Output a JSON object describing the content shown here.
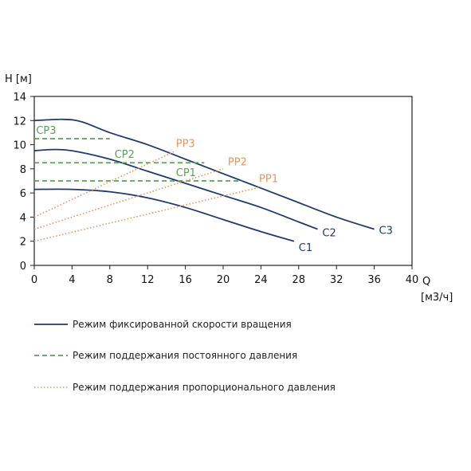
{
  "chart_data": {
    "type": "line",
    "ylabel": "H [м]",
    "xlabel": "Q",
    "xunit": "[м3/ч]",
    "xlim": [
      0,
      40
    ],
    "ylim": [
      0,
      14
    ],
    "xticks": [
      0,
      4,
      8,
      12,
      16,
      20,
      24,
      28,
      32,
      36,
      40
    ],
    "yticks": [
      0,
      2,
      4,
      6,
      8,
      10,
      12,
      14
    ],
    "grid": false,
    "colors": {
      "fixed": "#1f3a6e",
      "constant": "#5aa05a",
      "proportional": "#e8955a"
    },
    "series": [
      {
        "name": "C1",
        "group": "fixed",
        "x": [
          0,
          4,
          8,
          12,
          16,
          20,
          24,
          27.5
        ],
        "y": [
          6.3,
          6.3,
          6.1,
          5.6,
          4.8,
          3.8,
          2.8,
          2.0
        ]
      },
      {
        "name": "C2",
        "group": "fixed",
        "x": [
          0,
          2,
          4,
          8,
          12,
          16,
          20,
          24,
          28,
          30
        ],
        "y": [
          9.5,
          9.6,
          9.5,
          8.8,
          7.8,
          6.8,
          5.8,
          4.8,
          3.6,
          3.0
        ]
      },
      {
        "name": "C3",
        "group": "fixed",
        "x": [
          0,
          3,
          5,
          8,
          12,
          16,
          20,
          24,
          28,
          32,
          36
        ],
        "y": [
          12.0,
          12.1,
          11.9,
          11.0,
          10.0,
          8.8,
          7.6,
          6.4,
          5.2,
          4.0,
          3.0
        ]
      },
      {
        "name": "CP1",
        "group": "constant",
        "x": [
          0,
          22
        ],
        "y": [
          7.0,
          7.0
        ]
      },
      {
        "name": "CP2",
        "group": "constant",
        "x": [
          0,
          18
        ],
        "y": [
          8.5,
          8.5
        ]
      },
      {
        "name": "CP3",
        "group": "constant",
        "x": [
          0,
          8
        ],
        "y": [
          10.5,
          10.5
        ]
      },
      {
        "name": "PP1",
        "group": "proportional",
        "x": [
          0,
          24
        ],
        "y": [
          2.0,
          6.5
        ]
      },
      {
        "name": "PP2",
        "group": "proportional",
        "x": [
          0,
          20
        ],
        "y": [
          3.0,
          8.0
        ]
      },
      {
        "name": "PP3",
        "group": "proportional",
        "x": [
          0,
          15
        ],
        "y": [
          4.0,
          9.5
        ]
      }
    ],
    "labels": [
      {
        "text": "C1",
        "x": 28,
        "y": 1.2,
        "color": "fixed"
      },
      {
        "text": "C2",
        "x": 30.5,
        "y": 2.4,
        "color": "fixed"
      },
      {
        "text": "C3",
        "x": 36.5,
        "y": 2.6,
        "color": "fixed"
      },
      {
        "text": "CP1",
        "x": 15,
        "y": 7.4,
        "color": "constant"
      },
      {
        "text": "CP2",
        "x": 8.5,
        "y": 8.9,
        "color": "constant"
      },
      {
        "text": "CP3",
        "x": 0.2,
        "y": 10.9,
        "color": "constant"
      },
      {
        "text": "PP1",
        "x": 23.8,
        "y": 6.9,
        "color": "proportional"
      },
      {
        "text": "PP2",
        "x": 20.5,
        "y": 8.3,
        "color": "proportional"
      },
      {
        "text": "PP3",
        "x": 15,
        "y": 9.8,
        "color": "proportional"
      }
    ],
    "legend": {
      "placement": "bottom",
      "entries": [
        {
          "label": "Режим фиксированной скорости вращения",
          "group": "fixed"
        },
        {
          "label": "Режим поддержания постоянного давления",
          "group": "constant"
        },
        {
          "label": "Режим поддержания пропорционального давления",
          "group": "proportional"
        }
      ]
    }
  }
}
